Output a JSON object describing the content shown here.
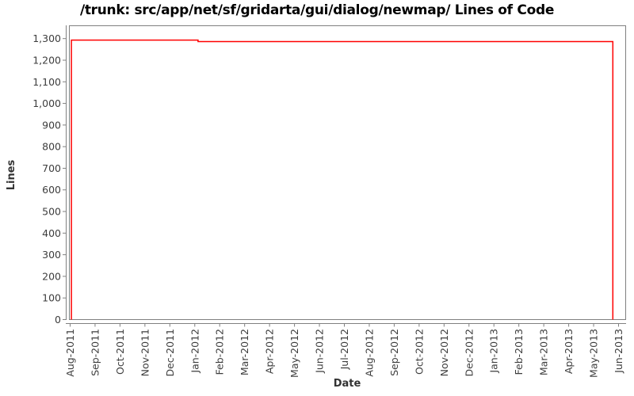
{
  "chart_data": {
    "type": "line",
    "title": "/trunk: src/app/net/sf/gridarta/gui/dialog/newmap/ Lines of Code",
    "xlabel": "Date",
    "ylabel": "Lines",
    "x_tick_labels": [
      "Aug-2011",
      "Sep-2011",
      "Oct-2011",
      "Nov-2011",
      "Dec-2011",
      "Jan-2012",
      "Feb-2012",
      "Mar-2012",
      "Apr-2012",
      "May-2012",
      "Jun-2012",
      "Jul-2012",
      "Aug-2012",
      "Sep-2012",
      "Oct-2012",
      "Nov-2012",
      "Dec-2012",
      "Jan-2013",
      "Feb-2013",
      "Mar-2013",
      "Apr-2013",
      "May-2013",
      "Jun-2013"
    ],
    "y_tick_labels": [
      "0",
      "100",
      "200",
      "300",
      "400",
      "500",
      "600",
      "700",
      "800",
      "900",
      "1,000",
      "1,100",
      "1,200",
      "1,300"
    ],
    "y_tick_values": [
      0,
      100,
      200,
      300,
      400,
      500,
      600,
      700,
      800,
      900,
      1000,
      1100,
      1200,
      1300
    ],
    "ylim": [
      0,
      1300
    ],
    "grid": false,
    "legend_position": "none",
    "series": [
      {
        "name": "lines-of-code",
        "color": "#ff0000",
        "points_month_value": [
          [
            0.05,
            0
          ],
          [
            0.05,
            1293
          ],
          [
            5.13,
            1293
          ],
          [
            5.13,
            1286
          ],
          [
            21.77,
            1286
          ],
          [
            21.77,
            0
          ]
        ]
      }
    ],
    "colors": {
      "axis": "#808080",
      "tick_label": "#3d3d3d",
      "title": "#000000",
      "background": "#ffffff"
    }
  }
}
